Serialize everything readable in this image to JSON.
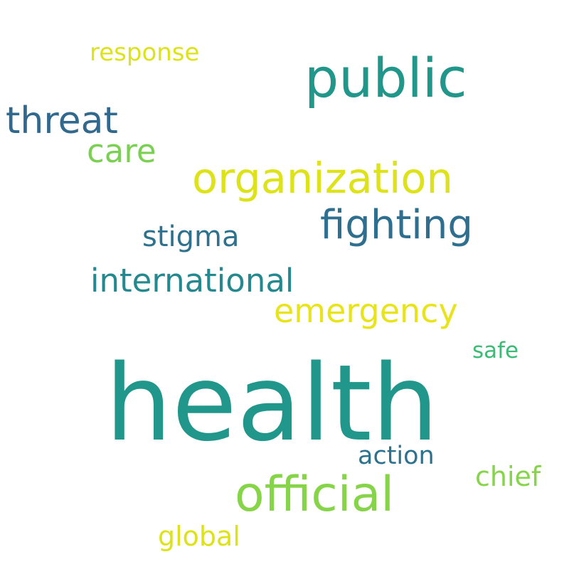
{
  "words": [
    {
      "text": "health",
      "color": "#21968b"
    },
    {
      "text": "public",
      "color": "#21968b"
    },
    {
      "text": "organization",
      "color": "#dde318"
    },
    {
      "text": "official",
      "color": "#86d549"
    },
    {
      "text": "fighting",
      "color": "#2e6e8e"
    },
    {
      "text": "emergency",
      "color": "#e8e419"
    },
    {
      "text": "international",
      "color": "#23898e"
    },
    {
      "text": "threat",
      "color": "#31688e"
    },
    {
      "text": "care",
      "color": "#7ad151"
    },
    {
      "text": "stigma",
      "color": "#2c728e"
    },
    {
      "text": "response",
      "color": "#dde318"
    },
    {
      "text": "action",
      "color": "#2c728e"
    },
    {
      "text": "chief",
      "color": "#86d549"
    },
    {
      "text": "global",
      "color": "#dde318"
    },
    {
      "text": "safe",
      "color": "#3bbb75"
    }
  ]
}
